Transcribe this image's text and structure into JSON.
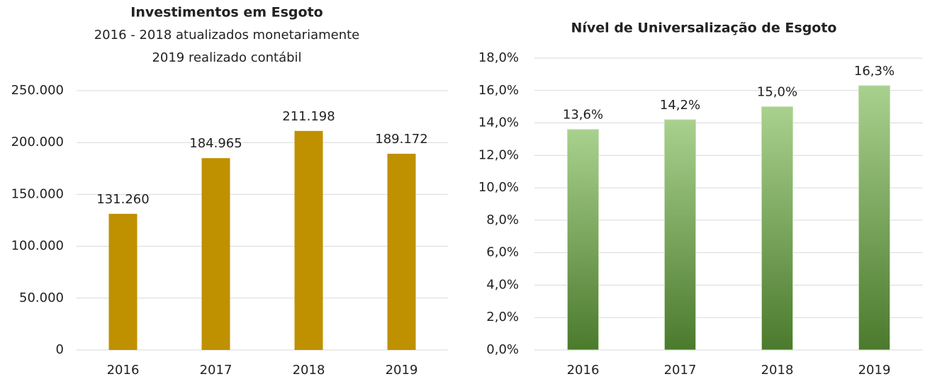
{
  "chart_data": [
    {
      "type": "bar",
      "title": "Investimentos em Esgoto",
      "subtitle": [
        "2016 - 2018 atualizados monetariamente",
        "2019 realizado contábil"
      ],
      "categories": [
        "2016",
        "2017",
        "2018",
        "2019"
      ],
      "values": [
        131260,
        184965,
        211198,
        189172
      ],
      "value_labels": [
        "131.260",
        "184.965",
        "211.198",
        "189.172"
      ],
      "color": "#bf9000",
      "ylim": [
        0,
        250000
      ],
      "yticks": [
        0,
        {
          "value": 50000,
          "label": "50.000"
        },
        {
          "value": 100000,
          "label": "100.000"
        },
        {
          "value": 150000,
          "label": "150.000"
        },
        {
          "value": 200000,
          "label": "200.000"
        },
        {
          "value": 250000,
          "label": "250.000"
        }
      ],
      "grid": true
    },
    {
      "type": "bar",
      "title": "Nível de Universalização de Esgoto",
      "categories": [
        "2016",
        "2017",
        "2018",
        "2019"
      ],
      "values": [
        13.6,
        14.2,
        15.0,
        16.3
      ],
      "value_labels": [
        "13,6%",
        "14,2%",
        "15,0%",
        "16,3%"
      ],
      "gradient": [
        "#a9d18e",
        "#4b7a2d"
      ],
      "ylim": [
        0,
        18
      ],
      "yticks": [
        {
          "value": 0,
          "label": "0,0%"
        },
        {
          "value": 2,
          "label": "2,0%"
        },
        {
          "value": 4,
          "label": "4,0%"
        },
        {
          "value": 6,
          "label": "6,0%"
        },
        {
          "value": 8,
          "label": "8,0%"
        },
        {
          "value": 10,
          "label": "10,0%"
        },
        {
          "value": 12,
          "label": "12,0%"
        },
        {
          "value": 14,
          "label": "14,0%"
        },
        {
          "value": 16,
          "label": "16,0%"
        },
        {
          "value": 18,
          "label": "18,0%"
        }
      ],
      "grid": true
    }
  ]
}
